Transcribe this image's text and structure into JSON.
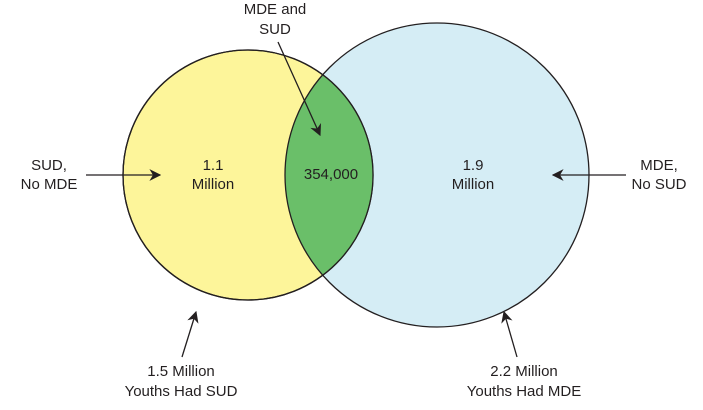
{
  "diagram": {
    "type": "venn",
    "sets": [
      {
        "label_line1": "1.5 Million",
        "label_line2": "Youths Had SUD",
        "color": "#fdf59a"
      },
      {
        "label_line1": "2.2 Million",
        "label_line2": "Youths Had MDE",
        "color": "#d5edf5"
      }
    ],
    "regions": {
      "sud_only": {
        "value_line1": "1.1",
        "value_line2": "Million",
        "callout_line1": "SUD,",
        "callout_line2": "No MDE"
      },
      "overlap": {
        "value": "354,000",
        "callout_line1": "MDE and",
        "callout_line2": "SUD",
        "color": "#6abf69"
      },
      "mde_only": {
        "value_line1": "1.9",
        "value_line2": "Million",
        "callout_line1": "MDE,",
        "callout_line2": "No SUD"
      }
    },
    "outline_color": "#231f20"
  }
}
